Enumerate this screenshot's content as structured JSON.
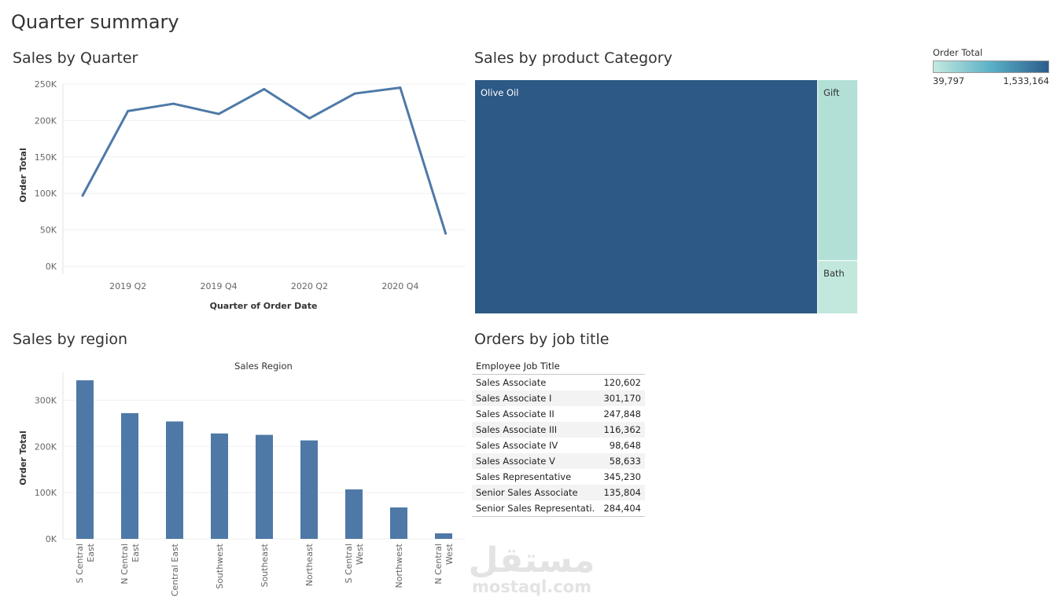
{
  "page_title": "Quarter summary",
  "panels": {
    "quarter": {
      "title": "Sales by Quarter"
    },
    "category": {
      "title": "Sales by product  Category"
    },
    "region": {
      "title": "Sales by region"
    },
    "job": {
      "title": "Orders by job title"
    }
  },
  "legend": {
    "title": "Order Total",
    "min_label": "39,797",
    "max_label": "1,533,164",
    "colors": [
      "#c4e9e0",
      "#5ab0c6",
      "#2c5d8c"
    ]
  },
  "watermark": {
    "arabic": "مستقل",
    "latin": "mostaql.com"
  },
  "chart_data": [
    {
      "type": "line",
      "title": "Sales by Quarter",
      "xlabel": "Quarter of Order Date",
      "ylabel": "Order Total",
      "x": [
        "2019 Q1",
        "2019 Q2",
        "2019 Q3",
        "2019 Q4",
        "2020 Q1",
        "2020 Q2",
        "2020 Q3",
        "2020 Q4",
        "2021 Q1"
      ],
      "x_tick_labels": [
        "2019 Q2",
        "2019 Q4",
        "2020 Q2",
        "2020 Q4"
      ],
      "values": [
        97000,
        213000,
        223000,
        209000,
        243000,
        203000,
        237000,
        245000,
        45000
      ],
      "ylim": [
        0,
        250000
      ],
      "y_ticks": [
        0,
        50000,
        100000,
        150000,
        200000,
        250000
      ],
      "y_tick_labels": [
        "0K",
        "50K",
        "100K",
        "150K",
        "200K",
        "250K"
      ],
      "color": "#4e79a7",
      "grid": true
    },
    {
      "type": "treemap",
      "title": "Sales by product  Category",
      "categories": [
        "Olive Oil",
        "Gift",
        "Bath"
      ],
      "values": [
        1533164,
        180000,
        39797
      ],
      "colors": [
        "#2c5985",
        "#b2e0d7",
        "#c2e8dd"
      ]
    },
    {
      "type": "bar",
      "title": "Sales by region",
      "header": "Sales Region",
      "ylabel": "Order Total",
      "categories": [
        [
          "S Central",
          "East"
        ],
        [
          "N Central",
          "East"
        ],
        [
          "Central East"
        ],
        [
          "Southwest"
        ],
        [
          "Southeast"
        ],
        [
          "Northeast"
        ],
        [
          "S Central",
          "West"
        ],
        [
          "Northwest"
        ],
        [
          "N Central",
          "West"
        ]
      ],
      "values": [
        343000,
        272000,
        254000,
        228000,
        225000,
        213000,
        107000,
        68000,
        12000
      ],
      "ylim": [
        0,
        350000
      ],
      "y_ticks": [
        0,
        100000,
        200000,
        300000
      ],
      "y_tick_labels": [
        "0K",
        "100K",
        "200K",
        "300K"
      ],
      "color": "#4e79a7",
      "grid": true
    },
    {
      "type": "table",
      "title": "Orders by job title",
      "column_header": "Employee Job Title",
      "rows": [
        {
          "label": "Sales Associate",
          "value": "120,602"
        },
        {
          "label": "Sales Associate I",
          "value": "301,170"
        },
        {
          "label": "Sales Associate II",
          "value": "247,848"
        },
        {
          "label": "Sales Associate III",
          "value": "116,362"
        },
        {
          "label": "Sales Associate IV",
          "value": "98,648"
        },
        {
          "label": "Sales Associate V",
          "value": "58,633"
        },
        {
          "label": "Sales Representative",
          "value": "345,230"
        },
        {
          "label": "Senior Sales Associate",
          "value": "135,804"
        },
        {
          "label": "Senior Sales Representati..",
          "value": "284,404"
        }
      ]
    }
  ]
}
